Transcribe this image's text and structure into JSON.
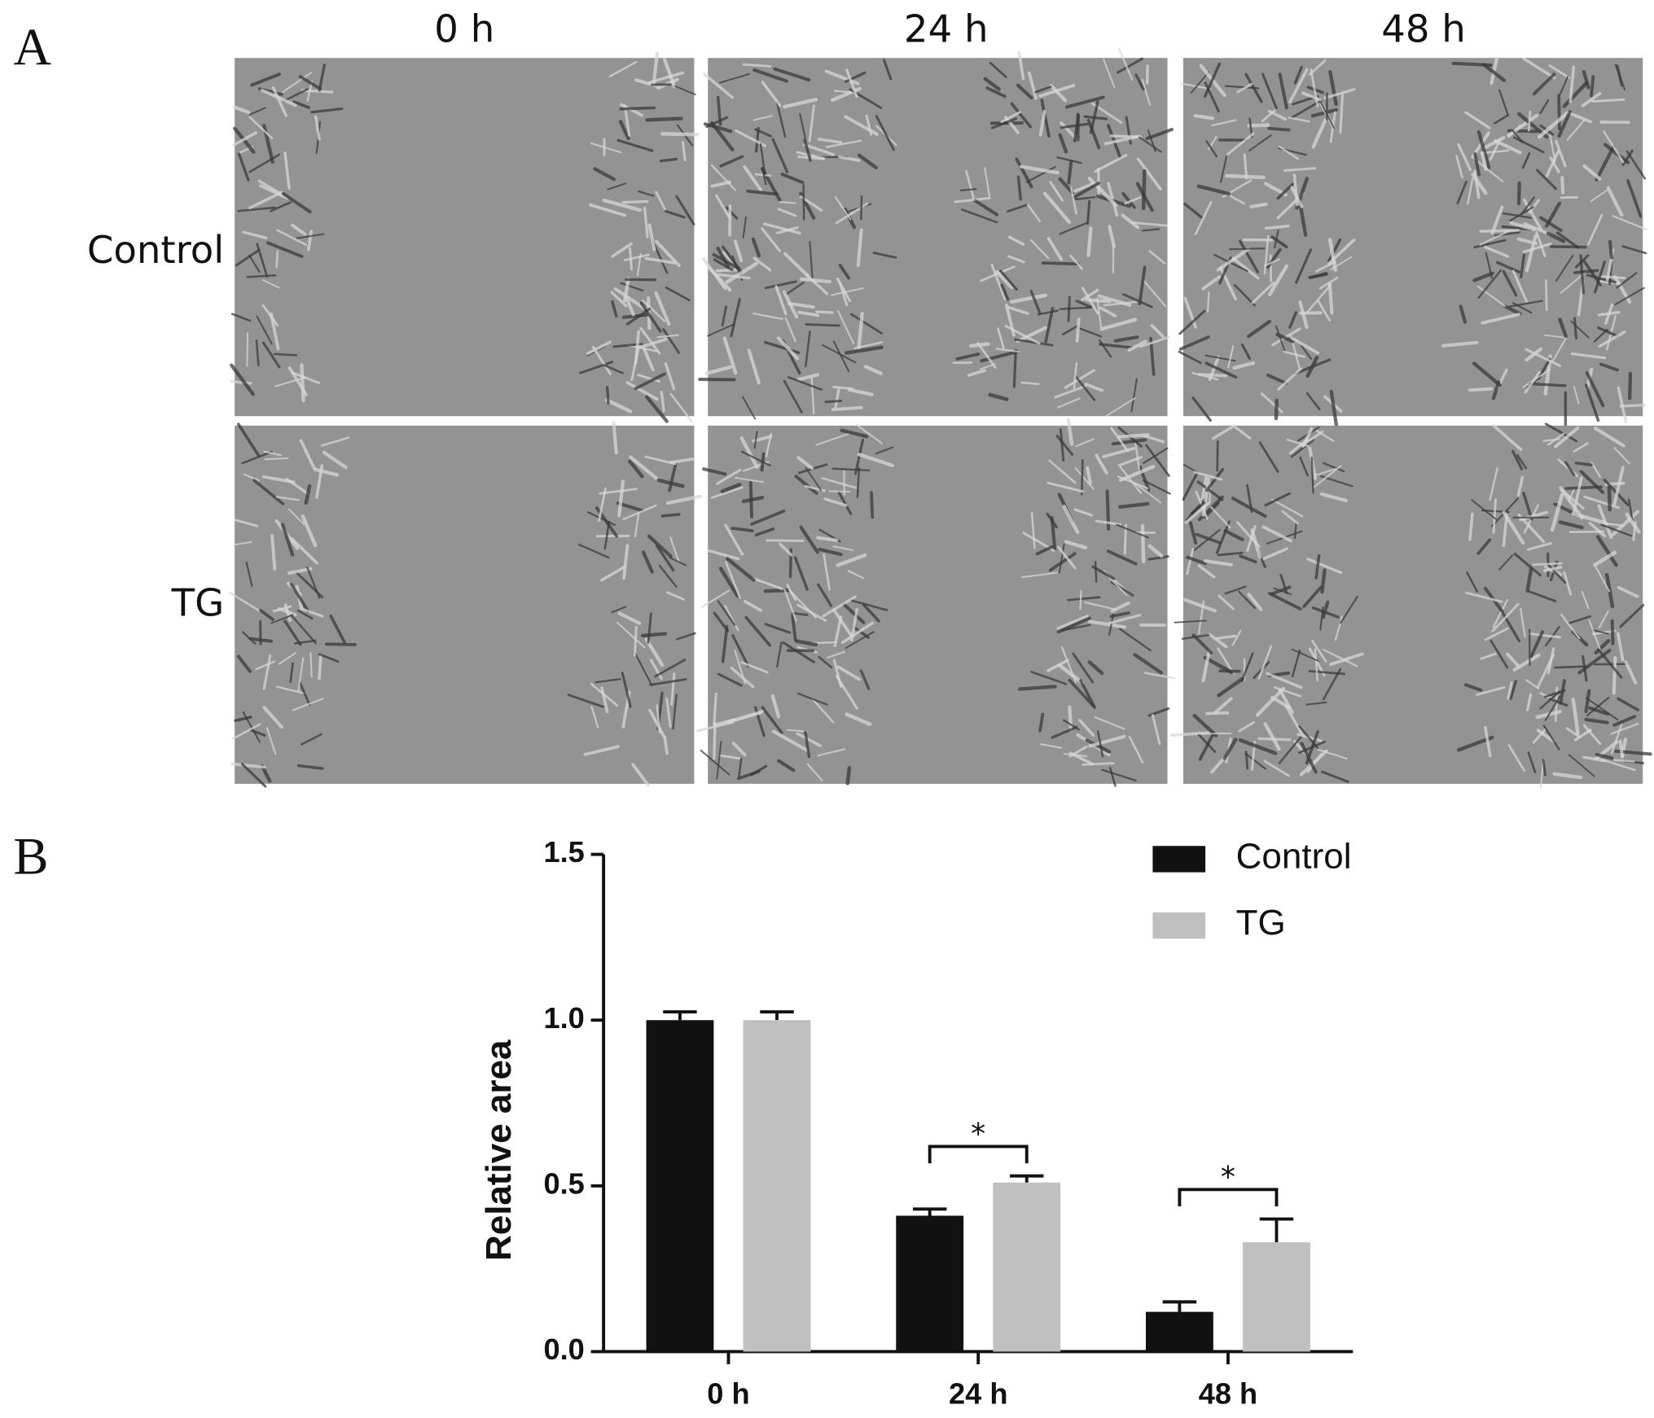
{
  "panel_labels": [
    "A",
    "B"
  ],
  "micrographs": {
    "columns": [
      "0 h",
      "24 h",
      "48 h"
    ],
    "rows": [
      "Control",
      "TG"
    ]
  },
  "chart_data": {
    "type": "bar",
    "y_label": "Relative area",
    "categories": [
      "0 h",
      "24 h",
      "48 h"
    ],
    "series": [
      {
        "name": "Control",
        "color": "#111111",
        "values": [
          1.0,
          0.41,
          0.12
        ],
        "errors": [
          0.025,
          0.02,
          0.03
        ]
      },
      {
        "name": "TG",
        "color": "#c0c0c0",
        "values": [
          1.0,
          0.51,
          0.33
        ],
        "errors": [
          0.025,
          0.02,
          0.07
        ]
      }
    ],
    "ylim": [
      0,
      1.5
    ],
    "yticks": [
      {
        "value": 0,
        "label": "0.0"
      },
      {
        "value": 0.5,
        "label": "0.5"
      },
      {
        "value": 1,
        "label": "1.0"
      },
      {
        "value": 1.5,
        "label": "1.5"
      }
    ],
    "annotations": [
      {
        "category": "24 h",
        "text": "*"
      },
      {
        "category": "48 h",
        "text": "*"
      }
    ],
    "legend": "top-right"
  }
}
